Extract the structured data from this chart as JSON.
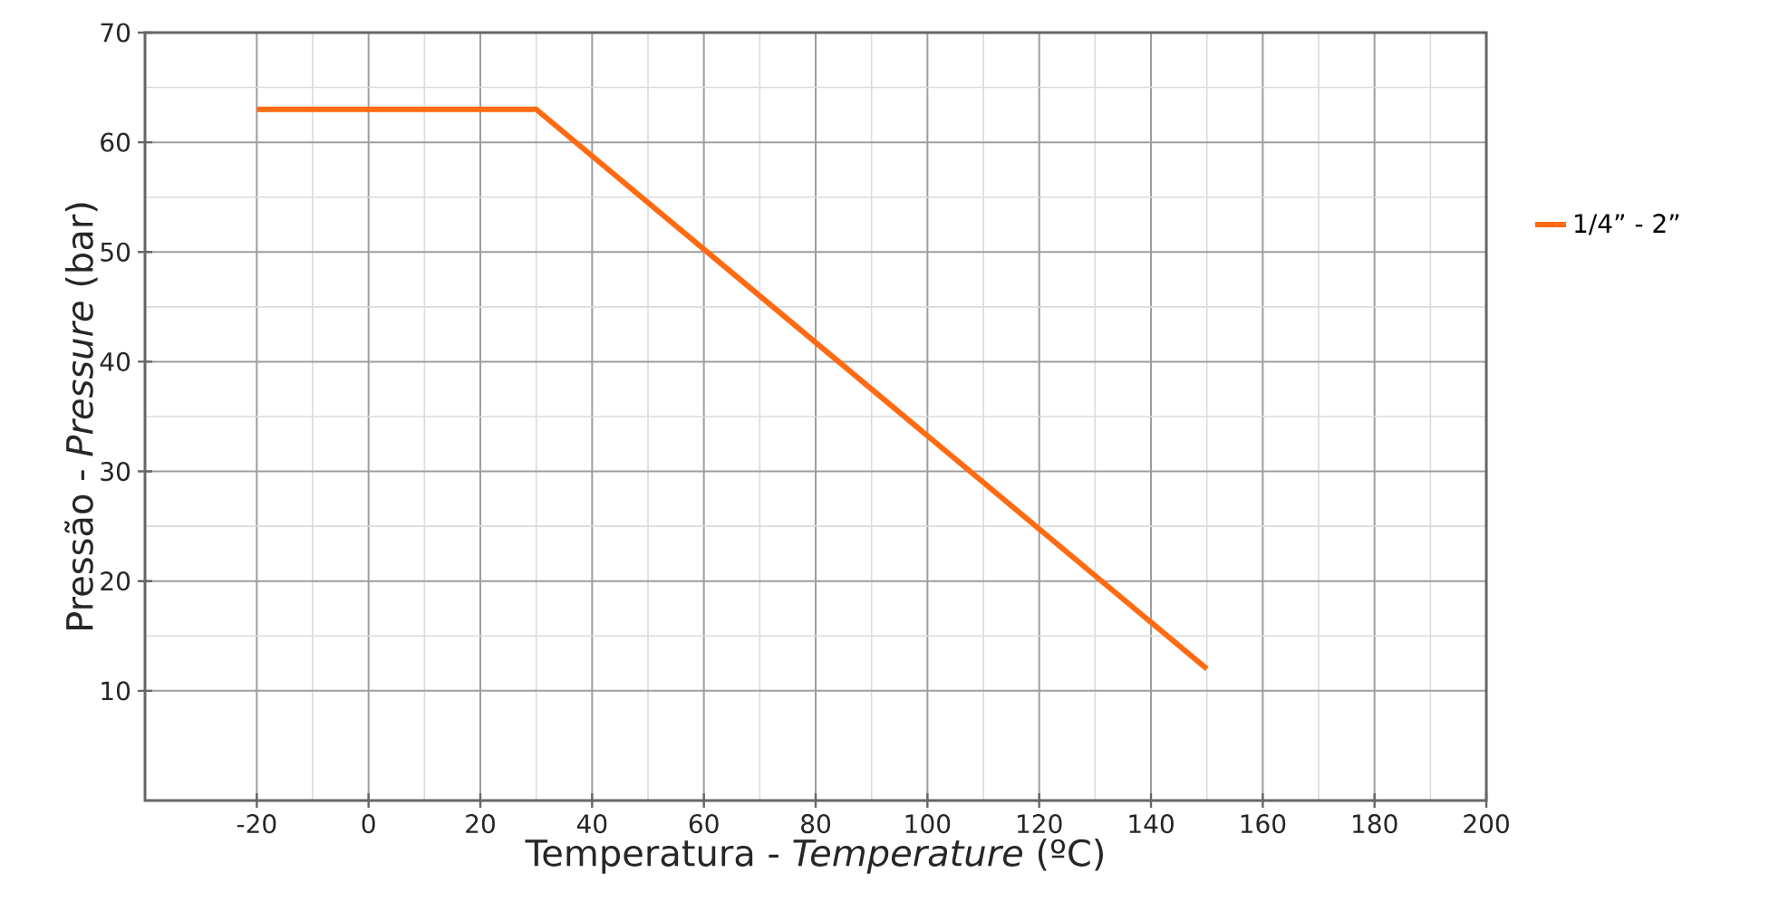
{
  "chart_data": {
    "type": "line",
    "xlabel": "Temperatura - *Temperature* (ºC)",
    "ylabel": "Pressão - *Pressure*  (bar)",
    "series": [
      {
        "name": "1/4” - 2”",
        "color": "#ff6a13",
        "x": [
          -20,
          30,
          150
        ],
        "values": [
          63,
          63,
          12
        ]
      }
    ],
    "xlim": [
      -40,
      200
    ],
    "xticks": [
      -20,
      0,
      20,
      40,
      60,
      80,
      100,
      120,
      140,
      160,
      180,
      200
    ],
    "ylim": [
      0,
      70
    ],
    "yticks": [
      10,
      20,
      30,
      40,
      50,
      60,
      70
    ],
    "grid": true,
    "legend": "right",
    "marker": "none",
    "line_style": "solid"
  }
}
